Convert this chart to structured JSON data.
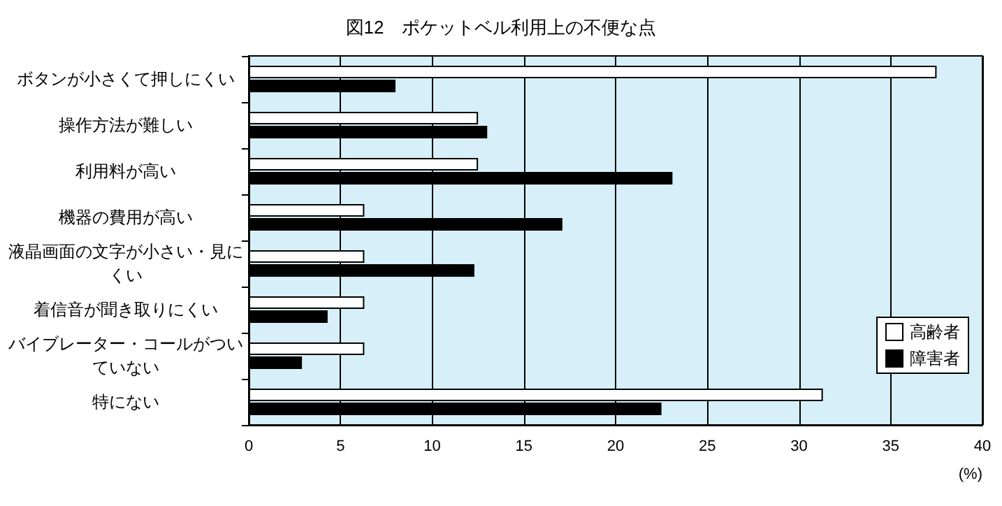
{
  "chart_data": {
    "type": "bar",
    "orientation": "horizontal",
    "title": "図12　ポケットベル利用上の不便な点",
    "xlabel": "(%)",
    "categories": [
      "ボタンが小さくて押しにくい",
      "操作方法が難しい",
      "利用料が高い",
      "機器の費用が高い",
      "液晶画面の文字が小さい・見にくい",
      "着信音が聞き取りにくい",
      "バイブレーター・コールがついていない",
      "特にない"
    ],
    "series": [
      {
        "name": "高齢者",
        "color": "#ffffff",
        "values": [
          37.5,
          12.5,
          12.5,
          6.3,
          6.3,
          6.3,
          6.3,
          31.3
        ]
      },
      {
        "name": "障害者",
        "color": "#000000",
        "values": [
          8.0,
          13.0,
          23.1,
          17.1,
          12.3,
          4.3,
          2.9,
          22.5
        ]
      }
    ],
    "xlim": [
      0,
      40
    ],
    "xticks": [
      0,
      5,
      10,
      15,
      20,
      25,
      30,
      35,
      40
    ],
    "grid": "x",
    "legend": "bottom right"
  }
}
